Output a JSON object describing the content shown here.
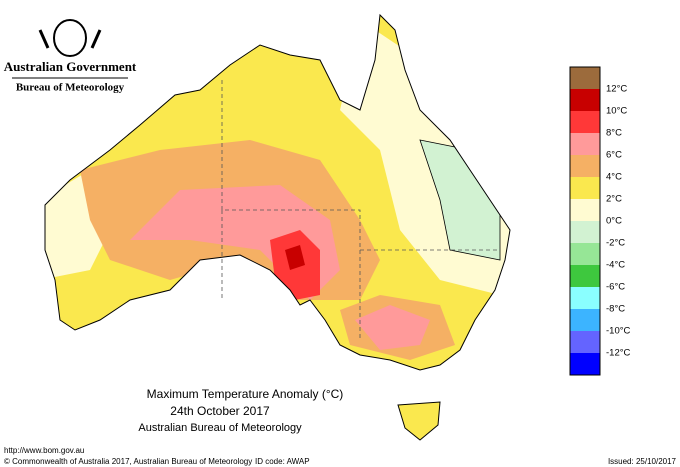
{
  "header": {
    "government": "Australian Government",
    "bureau": "Bureau of Meteorology"
  },
  "title": {
    "line1": "Maximum Temperature Anomaly (°C)",
    "line2": "24th October 2017",
    "line3": "Australian Bureau of Meteorology"
  },
  "legend": {
    "colors": [
      "#9c6b3c",
      "#c80000",
      "#ff3838",
      "#ff9a9a",
      "#f5b064",
      "#fae84e",
      "#fffbd2",
      "#d2f2d2",
      "#96e696",
      "#3ec83e",
      "#8affff",
      "#3cb4ff",
      "#6464ff",
      "#0000ff"
    ],
    "labels": [
      "12°C",
      "10°C",
      "8°C",
      "6°C",
      "4°C",
      "2°C",
      "0°C",
      "-2°C",
      "-4°C",
      "-6°C",
      "-8°C",
      "-10°C",
      "-12°C"
    ]
  },
  "footer": {
    "url": "http://www.bom.gov.au",
    "copyright": "© Commonwealth of Australia 2017, Australian Bureau of Meteorology",
    "id_code": "ID code: AWAP",
    "issued": "Issued: 25/10/2017"
  }
}
